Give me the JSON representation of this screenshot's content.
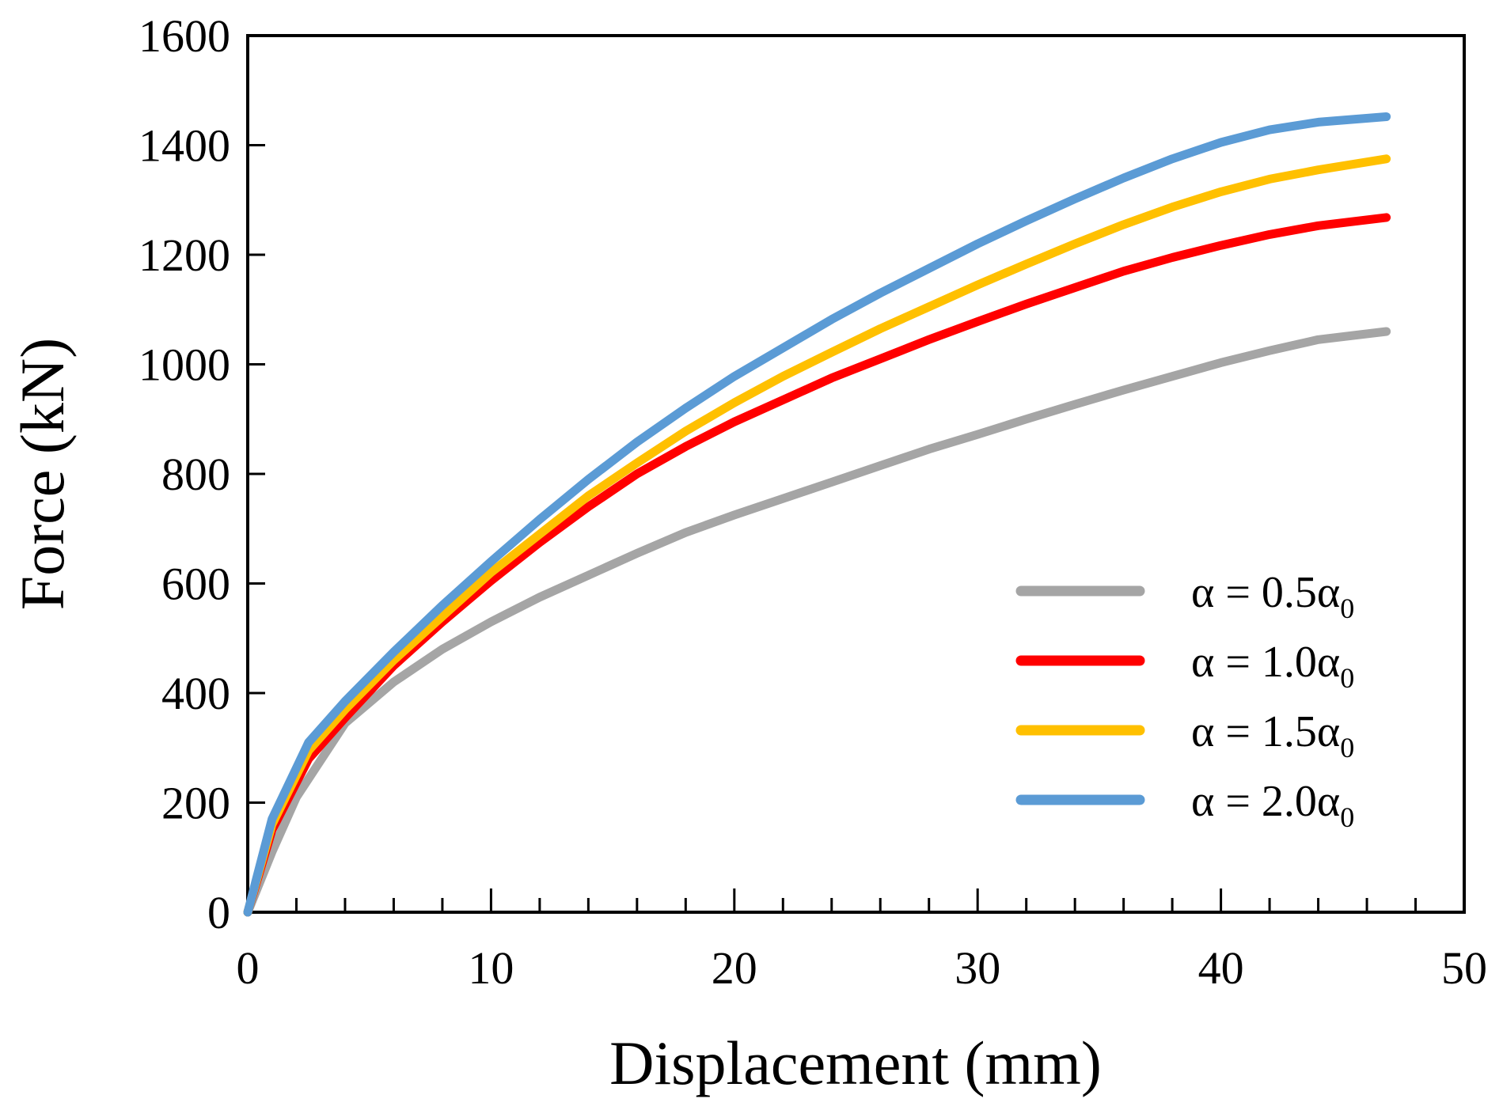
{
  "chart_data": {
    "type": "line",
    "title": "",
    "xlabel": "Displacement (mm)",
    "ylabel": "Force (kN)",
    "xlim": [
      0,
      50
    ],
    "ylim": [
      0,
      1600
    ],
    "xticks": [
      0,
      10,
      20,
      30,
      40,
      50
    ],
    "yticks": [
      0,
      200,
      400,
      600,
      800,
      1000,
      1200,
      1400,
      1600
    ],
    "x_minor_step": 2,
    "grid": false,
    "legend_position": "bottom-right",
    "series": [
      {
        "name": "α = 0.5α0",
        "label_main": "α = 0.5α",
        "label_sub": "0",
        "color": "#A5A5A5",
        "x": [
          0,
          1,
          2,
          4,
          6,
          8,
          10,
          12,
          14,
          16,
          18,
          20,
          22,
          24,
          26,
          28,
          30,
          32,
          34,
          36,
          38,
          40,
          42,
          44,
          46.8
        ],
        "y": [
          0,
          110,
          210,
          345,
          420,
          480,
          530,
          575,
          615,
          655,
          693,
          725,
          755,
          785,
          815,
          845,
          872,
          900,
          927,
          953,
          978,
          1003,
          1025,
          1045,
          1060
        ]
      },
      {
        "name": "α = 1.0α0",
        "label_main": "α = 1.0α",
        "label_sub": "0",
        "color": "#FF0000",
        "x": [
          0,
          1,
          2.5,
          4,
          6,
          8,
          10,
          12,
          14,
          16,
          18,
          20,
          22,
          24,
          26,
          28,
          30,
          32,
          34,
          36,
          38,
          40,
          42,
          44,
          46.8
        ],
        "y": [
          0,
          150,
          280,
          355,
          450,
          530,
          605,
          675,
          740,
          800,
          850,
          895,
          935,
          975,
          1010,
          1045,
          1078,
          1110,
          1140,
          1170,
          1195,
          1217,
          1237,
          1253,
          1268
        ]
      },
      {
        "name": "α = 1.5α0",
        "label_main": "α = 1.5α",
        "label_sub": "0",
        "color": "#FFC000",
        "x": [
          0,
          1,
          2.5,
          4,
          6,
          8,
          10,
          12,
          14,
          16,
          18,
          20,
          22,
          24,
          26,
          28,
          30,
          32,
          34,
          36,
          38,
          40,
          42,
          44,
          46.8
        ],
        "y": [
          0,
          160,
          295,
          370,
          460,
          540,
          620,
          690,
          760,
          820,
          878,
          930,
          978,
          1022,
          1065,
          1105,
          1145,
          1183,
          1220,
          1255,
          1287,
          1315,
          1338,
          1355,
          1375
        ]
      },
      {
        "name": "α = 2.0α0",
        "label_main": "α = 2.0α",
        "label_sub": "0",
        "color": "#5B9BD5",
        "x": [
          0,
          1,
          2.5,
          4,
          6,
          8,
          10,
          12,
          14,
          16,
          18,
          20,
          22,
          24,
          26,
          28,
          30,
          32,
          34,
          36,
          38,
          40,
          42,
          44,
          46.8
        ],
        "y": [
          0,
          170,
          310,
          385,
          475,
          560,
          640,
          717,
          790,
          858,
          920,
          978,
          1030,
          1082,
          1130,
          1175,
          1220,
          1262,
          1302,
          1340,
          1375,
          1405,
          1428,
          1442,
          1452
        ]
      }
    ]
  }
}
